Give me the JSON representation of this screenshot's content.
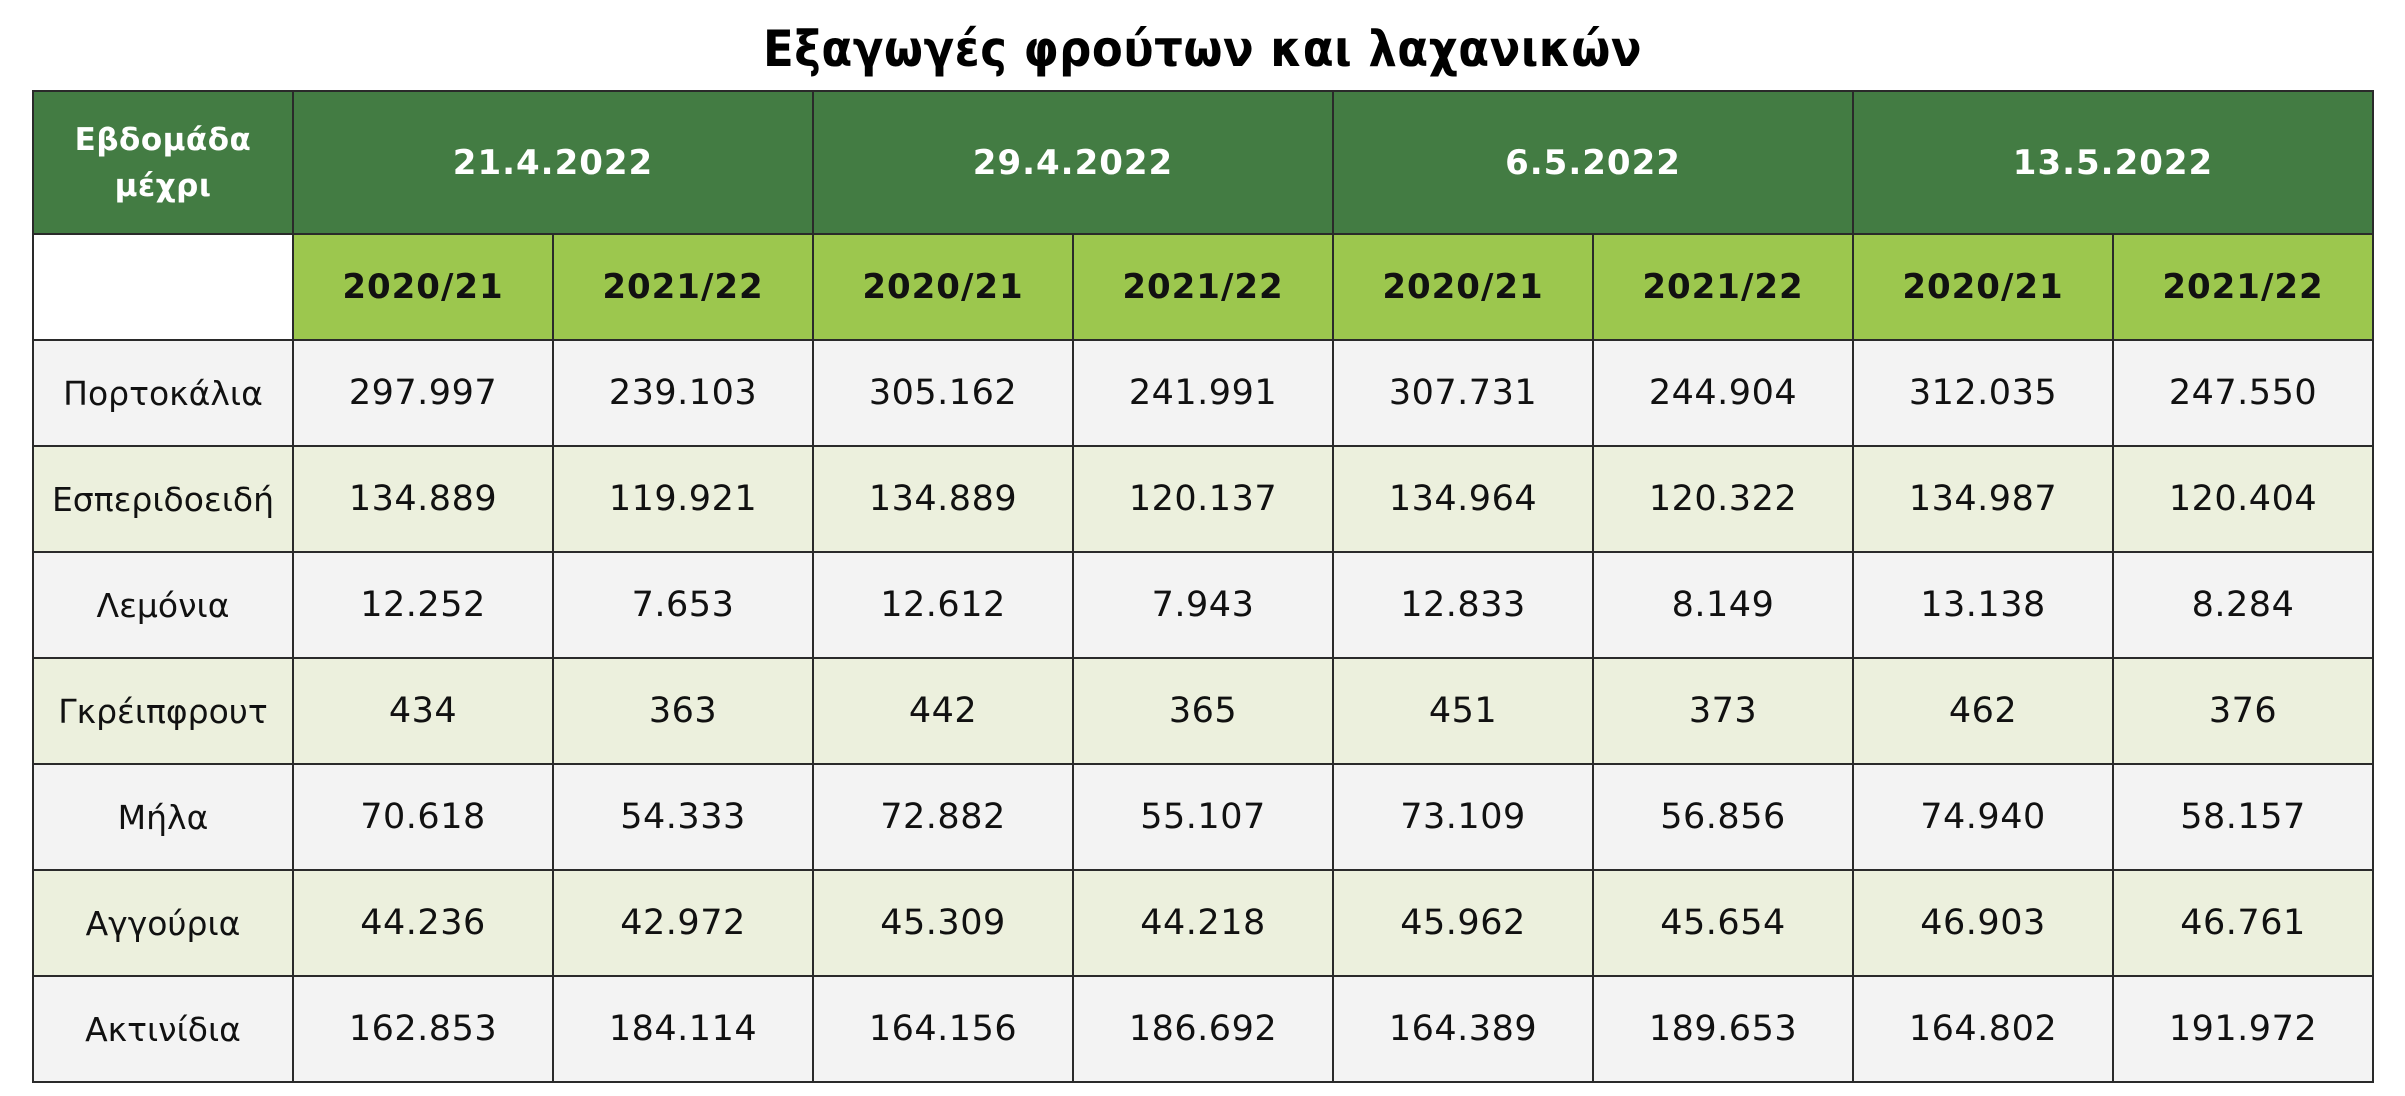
{
  "title": "Εξαγωγές φρούτων και λαχανικών",
  "header": {
    "week_label_line1": "Εβδομάδα",
    "week_label_line2": "μέχρι",
    "weeks": [
      "21.4.2022",
      "29.4.2022",
      "6.5.2022",
      "13.5.2022"
    ],
    "seasons": [
      "2020/21",
      "2021/22"
    ]
  },
  "rows": [
    {
      "product": "Πορτοκάλια",
      "values": [
        "297.997",
        "239.103",
        "305.162",
        "241.991",
        "307.731",
        "244.904",
        "312.035",
        "247.550"
      ]
    },
    {
      "product": "Εσπεριδοειδή",
      "values": [
        "134.889",
        "119.921",
        "134.889",
        "120.137",
        "134.964",
        "120.322",
        "134.987",
        "120.404"
      ]
    },
    {
      "product": "Λεμόνια",
      "values": [
        "12.252",
        "7.653",
        "12.612",
        "7.943",
        "12.833",
        "8.149",
        "13.138",
        "8.284"
      ]
    },
    {
      "product": "Γκρέιπφρουτ",
      "values": [
        "434",
        "363",
        "442",
        "365",
        "451",
        "373",
        "462",
        "376"
      ]
    },
    {
      "product": "Μήλα",
      "values": [
        "70.618",
        "54.333",
        "72.882",
        "55.107",
        "73.109",
        "56.856",
        "74.940",
        "58.157"
      ]
    },
    {
      "product": "Αγγούρια",
      "values": [
        "44.236",
        "42.972",
        "45.309",
        "44.218",
        "45.962",
        "45.654",
        "46.903",
        "46.761"
      ]
    },
    {
      "product": "Ακτινίδια",
      "values": [
        "162.853",
        "184.114",
        "164.156",
        "186.692",
        "164.389",
        "189.653",
        "164.802",
        "191.972"
      ]
    }
  ],
  "colors": {
    "week_header_bg": "#437c43",
    "season_header_bg": "#9cc74e",
    "row_odd_bg": "#f3f3f3",
    "row_even_bg": "#ecf0dd"
  },
  "chart_data": {
    "type": "table",
    "title": "Εξαγωγές φρούτων και λαχανικών",
    "columns": [
      {
        "week": "21.4.2022",
        "season": "2020/21"
      },
      {
        "week": "21.4.2022",
        "season": "2021/22"
      },
      {
        "week": "29.4.2022",
        "season": "2020/21"
      },
      {
        "week": "29.4.2022",
        "season": "2021/22"
      },
      {
        "week": "6.5.2022",
        "season": "2020/21"
      },
      {
        "week": "6.5.2022",
        "season": "2021/22"
      },
      {
        "week": "13.5.2022",
        "season": "2020/21"
      },
      {
        "week": "13.5.2022",
        "season": "2021/22"
      }
    ],
    "series": [
      {
        "name": "Πορτοκάλια",
        "values": [
          297997,
          239103,
          305162,
          241991,
          307731,
          244904,
          312035,
          247550
        ]
      },
      {
        "name": "Εσπεριδοειδή",
        "values": [
          134889,
          119921,
          134889,
          120137,
          134964,
          120322,
          134987,
          120404
        ]
      },
      {
        "name": "Λεμόνια",
        "values": [
          12252,
          7653,
          12612,
          7943,
          12833,
          8149,
          13138,
          8284
        ]
      },
      {
        "name": "Γκρέιπφρουτ",
        "values": [
          434,
          363,
          442,
          365,
          451,
          373,
          462,
          376
        ]
      },
      {
        "name": "Μήλα",
        "values": [
          70618,
          54333,
          72882,
          55107,
          73109,
          56856,
          74940,
          58157
        ]
      },
      {
        "name": "Αγγούρια",
        "values": [
          44236,
          42972,
          45309,
          44218,
          45962,
          45654,
          46903,
          46761
        ]
      },
      {
        "name": "Ακτινίδια",
        "values": [
          162853,
          184114,
          164156,
          186692,
          164389,
          189653,
          164802,
          191972
        ]
      }
    ]
  }
}
